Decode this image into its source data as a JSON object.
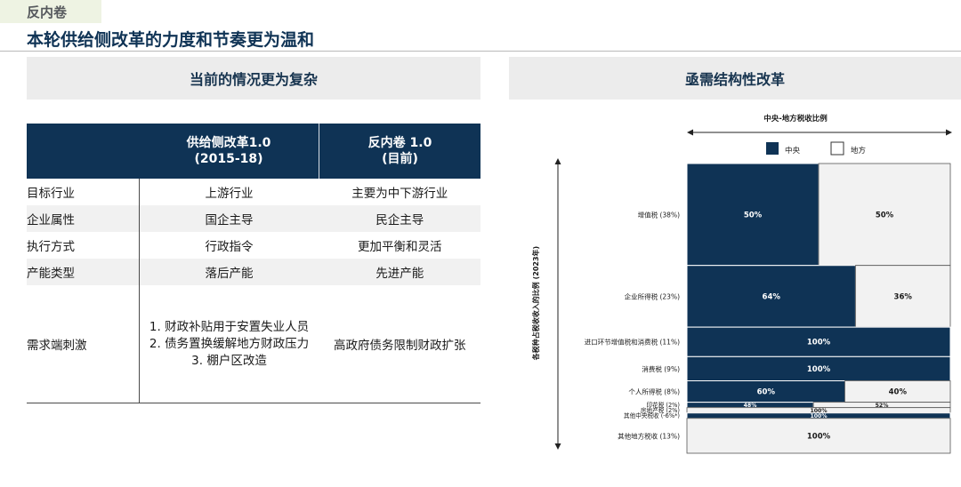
{
  "tag": "反内卷",
  "headline": "本轮供给侧改革的力度和节奏更为温和",
  "left_panel": {
    "title": "当前的情况更为复杂",
    "table": {
      "headers": [
        {
          "line1": "",
          "line2": ""
        },
        {
          "line1": "供给侧改革1.0",
          "line2": "(2015-18)"
        },
        {
          "line1": "反内卷 1.0",
          "line2": "(目前)"
        }
      ],
      "rows": [
        {
          "label": "目标行业",
          "col1": "上游行业",
          "col2": "主要为中下游行业"
        },
        {
          "label": "企业属性",
          "col1": "国企主导",
          "col2": "民企主导"
        },
        {
          "label": "执行方式",
          "col1": "行政指令",
          "col2": "更加平衡和灵活"
        },
        {
          "label": "产能类型",
          "col1": "落后产能",
          "col2": "先进产能"
        }
      ],
      "last_row": {
        "label": "需求端刺激",
        "col1_lines": [
          "1. 财政补贴用于安置失业人员",
          "2. 债务置换缓解地方财政压力",
          "3. 棚户区改造"
        ],
        "col2": "高政府债务限制财政扩张"
      }
    }
  },
  "right_panel": {
    "title": "亟需结构性改革"
  },
  "chart_data": {
    "type": "bar",
    "subtype": "mekko-100pct-horizontal",
    "title": "中央-地方税收比例",
    "ylabel": "各税种占税收收入的比例 (2023年)",
    "legend": [
      {
        "name": "中央",
        "color": "#0f3355"
      },
      {
        "name": "地方",
        "color": "#f2f2f2"
      }
    ],
    "legend_position": "top",
    "colors": {
      "central": "#0f3355",
      "local": "#f2f2f2"
    },
    "rows": [
      {
        "label": "增值税 (38%)",
        "weight": 38,
        "central": 50,
        "local": 50,
        "central_label": "50%",
        "local_label": "50%"
      },
      {
        "label": "企业所得税 (23%)",
        "weight": 23,
        "central": 64,
        "local": 36,
        "central_label": "64%",
        "local_label": "36%"
      },
      {
        "label": "进口环节增值税和消费税 (11%)",
        "weight": 11,
        "central": 100,
        "local": 0,
        "central_label": "100%",
        "local_label": ""
      },
      {
        "label": "消费税 (9%)",
        "weight": 9,
        "central": 100,
        "local": 0,
        "central_label": "100%",
        "local_label": ""
      },
      {
        "label": "个人所得税 (8%)",
        "weight": 8,
        "central": 60,
        "local": 40,
        "central_label": "60%",
        "local_label": "40%"
      },
      {
        "label": "印花税 (2%)",
        "weight": 2,
        "central": 48,
        "local": 52,
        "central_label": "48%",
        "local_label": "52%"
      },
      {
        "label": "房地产税 (2%)",
        "weight": 2,
        "central": 0,
        "local": 100,
        "central_label": "",
        "local_label": "100%"
      },
      {
        "label": "其他中央税收 (-6%*)",
        "weight": 2,
        "central": 100,
        "local": 0,
        "central_label": "100%",
        "local_label": ""
      },
      {
        "label": "其他地方税收 (13%)",
        "weight": 13,
        "central": 0,
        "local": 100,
        "central_label": "",
        "local_label": "100%"
      }
    ]
  }
}
